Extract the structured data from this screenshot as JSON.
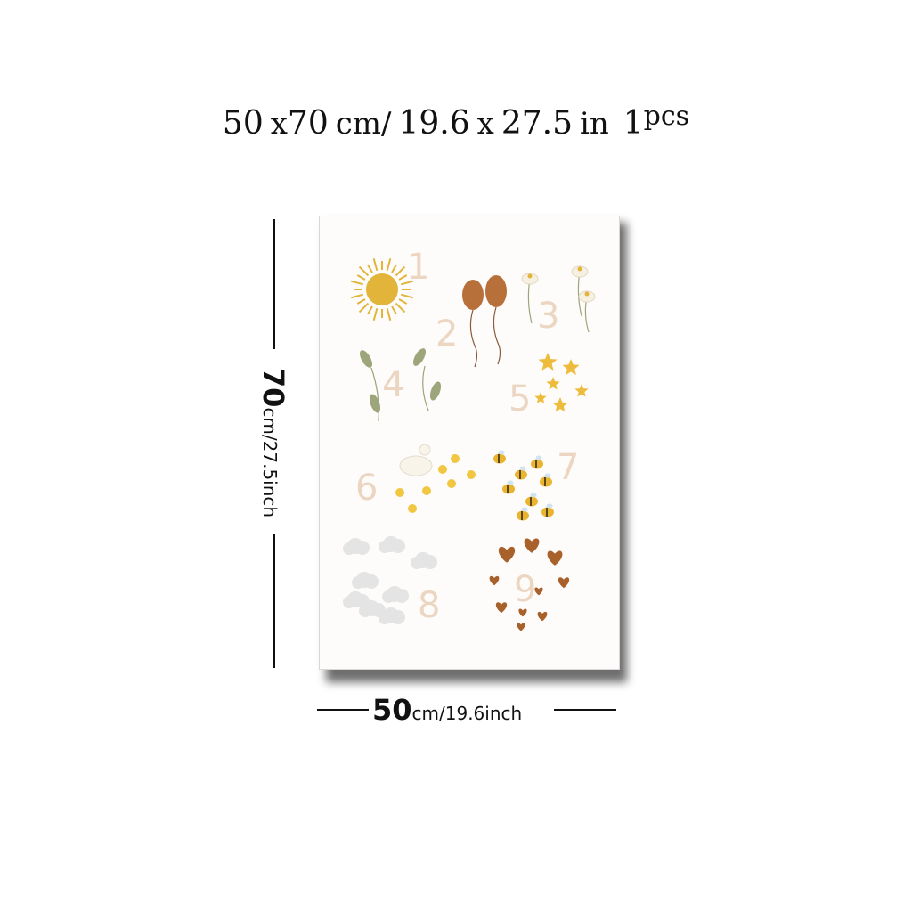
{
  "header": {
    "w": "50",
    "x1": "x",
    "h": "70",
    "cm_unit": "cm/",
    "in_w": "19.6",
    "x2": "x",
    "in_h": "27.5",
    "in_unit": "in",
    "qty": "1",
    "qty_unit": "pcs"
  },
  "height_dim": {
    "value": "70",
    "unit": "cm/27.5inch"
  },
  "width_dim": {
    "value": "50",
    "unit": "cm/19.6inch"
  },
  "poster": {
    "numbers": [
      "1",
      "2",
      "3",
      "4",
      "5",
      "6",
      "7",
      "8",
      "9"
    ],
    "colors": {
      "number": "#ecd6c2",
      "sun": "#e2b43a",
      "balloon": "#b8703a",
      "leaf": "#9da57a",
      "star": "#eebc3c",
      "chick": "#f1c640",
      "bee": "#e9b52f",
      "cloud": "#e4e4e4",
      "heart": "#a8612a"
    }
  }
}
